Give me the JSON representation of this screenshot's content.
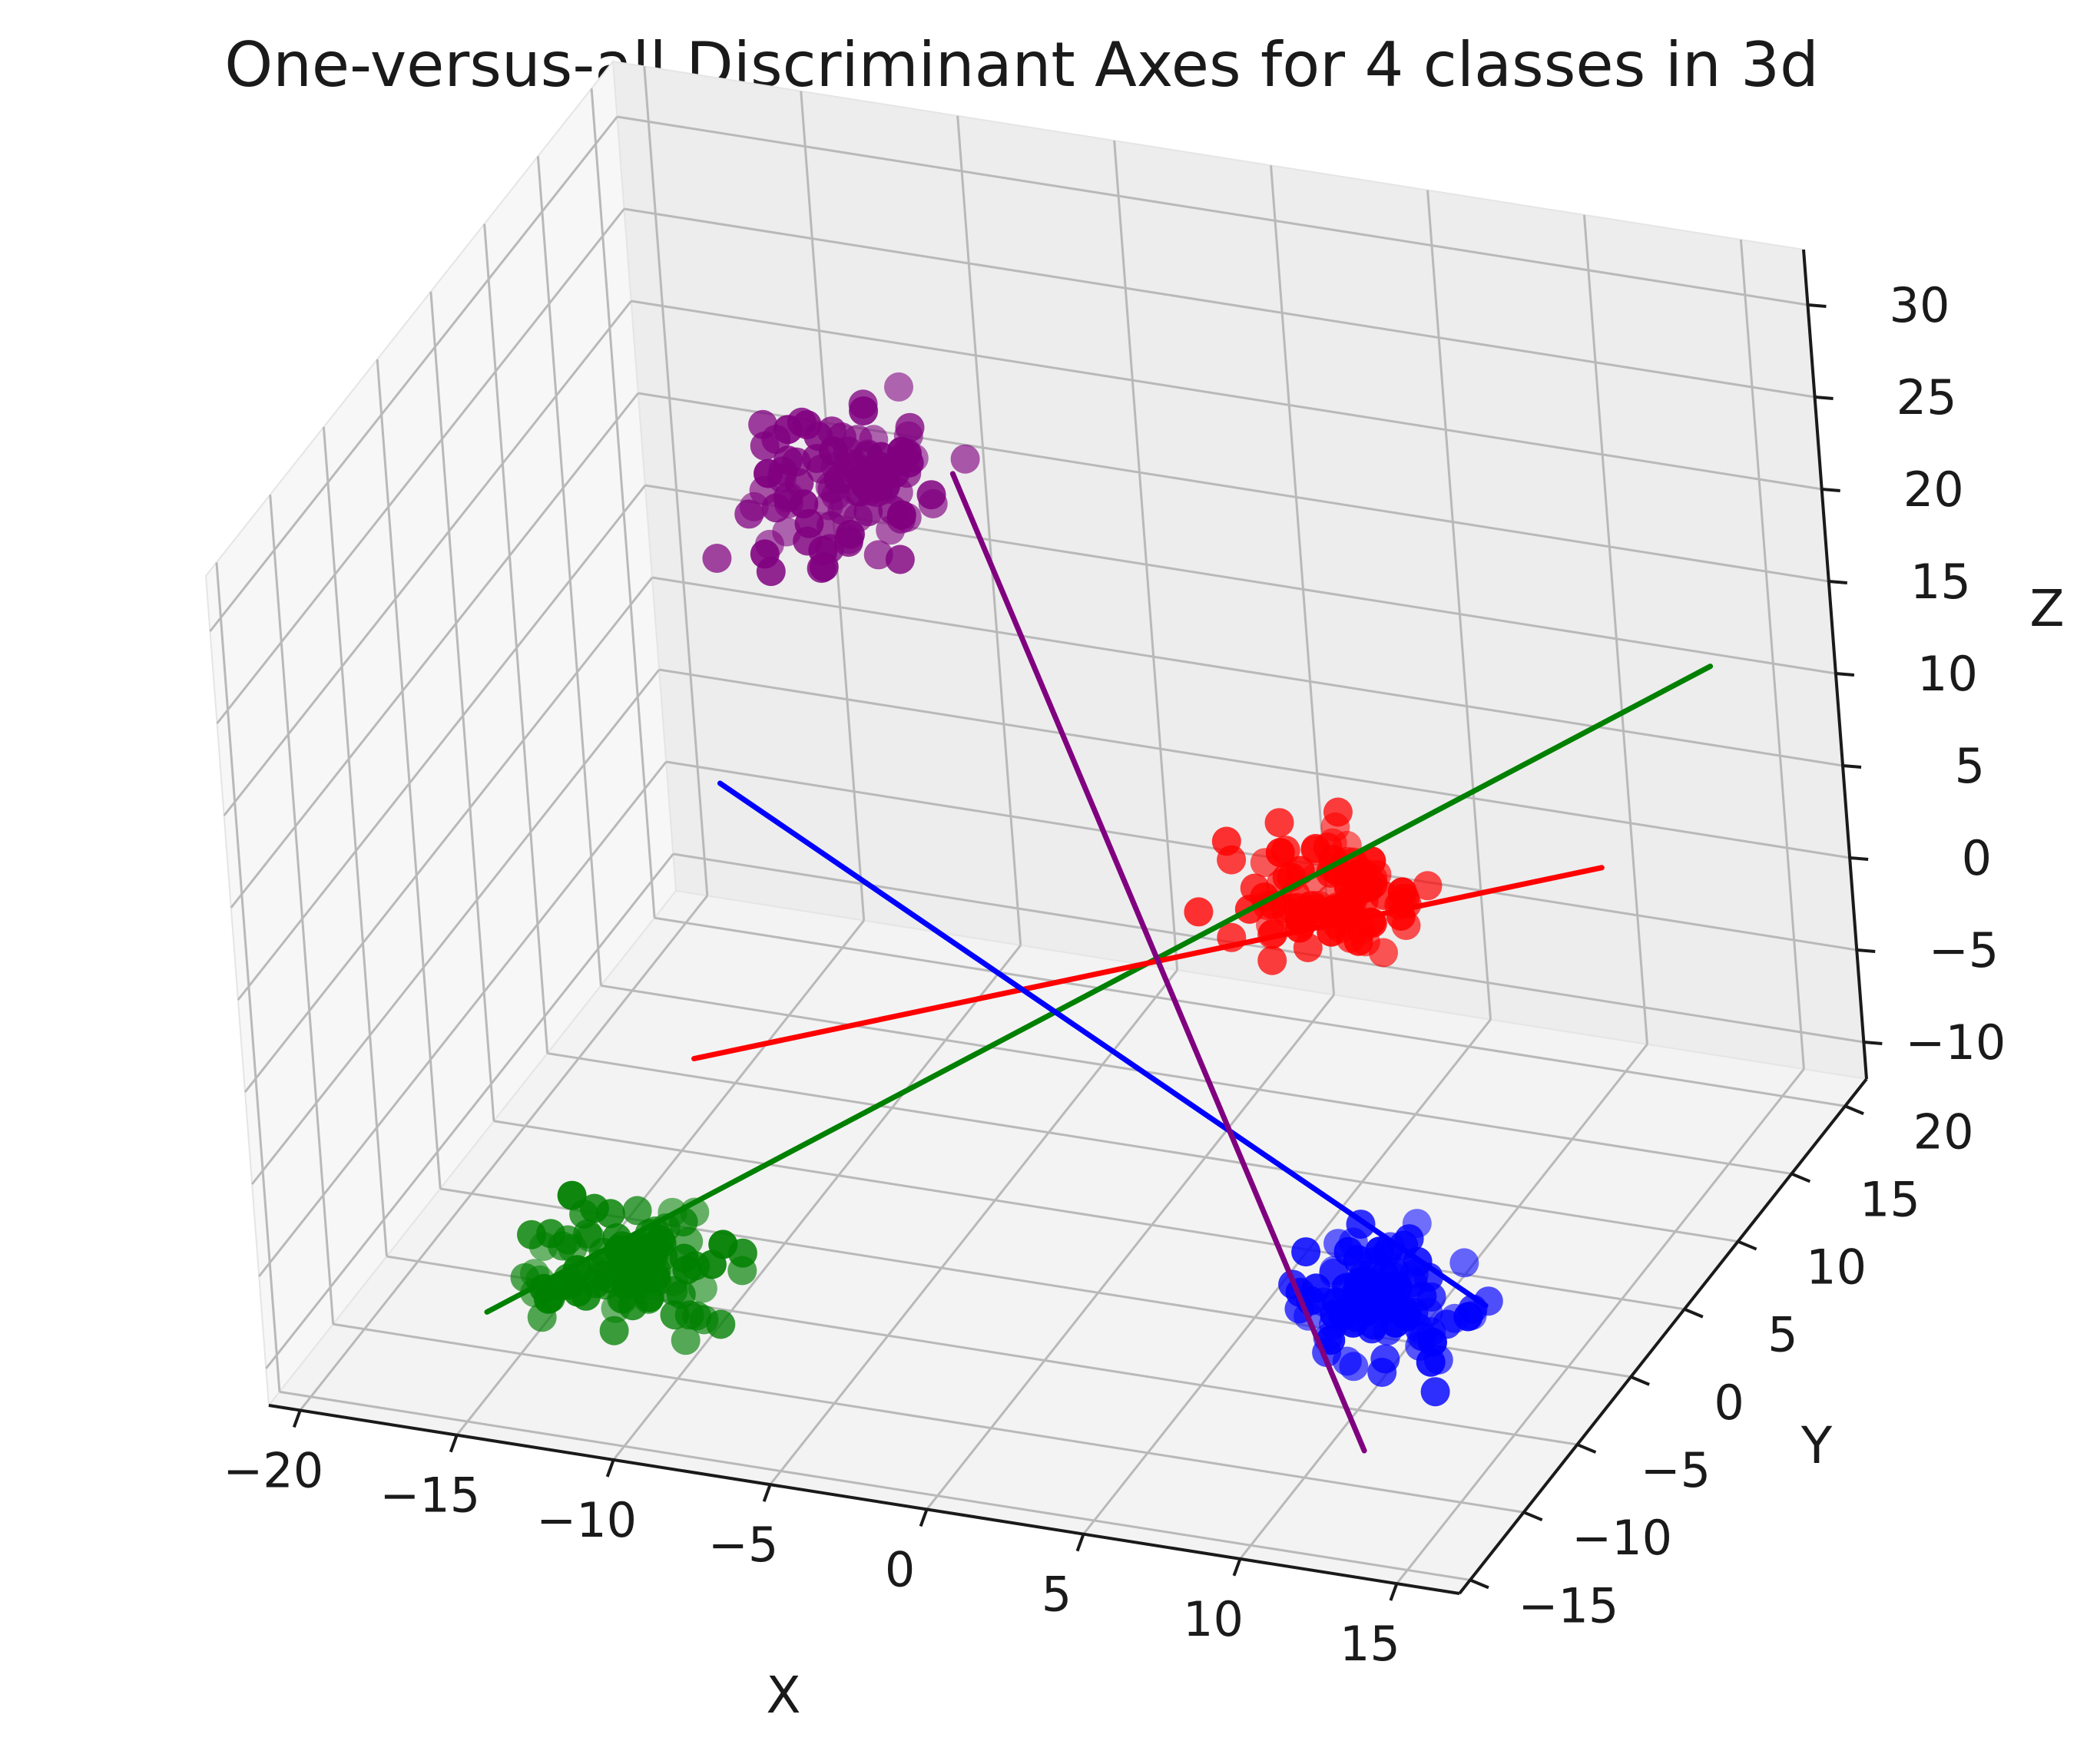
{
  "chart_data": {
    "type": "scatter",
    "title": "One-versus-all Discriminant Axes for 4 classes in 3d",
    "xlabel": "X",
    "ylabel": "Y",
    "zlabel": "Z",
    "xlim": [
      -21,
      17
    ],
    "ylim": [
      -16,
      22
    ],
    "zlim": [
      -12,
      33
    ],
    "xticks": [
      -20,
      -15,
      -10,
      -5,
      0,
      5,
      10,
      15
    ],
    "yticks": [
      -15,
      -10,
      -5,
      0,
      5,
      10,
      15,
      20
    ],
    "zticks": [
      -10,
      -5,
      0,
      5,
      10,
      15,
      20,
      25,
      30
    ],
    "xtick_labels": [
      "−20",
      "−15",
      "−10",
      "−5",
      "0",
      "5",
      "10",
      "15"
    ],
    "ytick_labels": [
      "−15",
      "−10",
      "−5",
      "0",
      "5",
      "10",
      "15",
      "20"
    ],
    "ztick_labels": [
      "−10",
      "−5",
      "0",
      "5",
      "10",
      "15",
      "20",
      "25",
      "30"
    ],
    "grid": true,
    "series": [
      {
        "color": "#008000",
        "center": [
          -12,
          -8,
          -8
        ],
        "spread": [
          4,
          4,
          3
        ],
        "count": 100
      },
      {
        "color": "#ff0000",
        "center": [
          5,
          8,
          5
        ],
        "spread": [
          3.5,
          3.5,
          3.5
        ],
        "count": 100
      },
      {
        "color": "#0000ff",
        "center": [
          10,
          -2,
          -8
        ],
        "spread": [
          3.5,
          3.5,
          3.5
        ],
        "count": 100
      },
      {
        "color": "#800080",
        "center": [
          -10,
          10,
          22
        ],
        "spread": [
          4,
          5,
          4
        ],
        "count": 100
      }
    ],
    "lines": [
      {
        "color": "#008000",
        "from": [
          -16,
          -10,
          -10
        ],
        "to": [
          16,
          14,
          16
        ]
      },
      {
        "color": "#ff0000",
        "from": [
          -14,
          4,
          -6
        ],
        "to": [
          12,
          14,
          4
        ]
      },
      {
        "color": "#0000ff",
        "from": [
          -14,
          8,
          6
        ],
        "to": [
          14,
          -4,
          -6
        ]
      },
      {
        "color": "#800080",
        "from": [
          -8,
          14,
          20
        ],
        "to": [
          12,
          -10,
          -10
        ]
      }
    ]
  }
}
